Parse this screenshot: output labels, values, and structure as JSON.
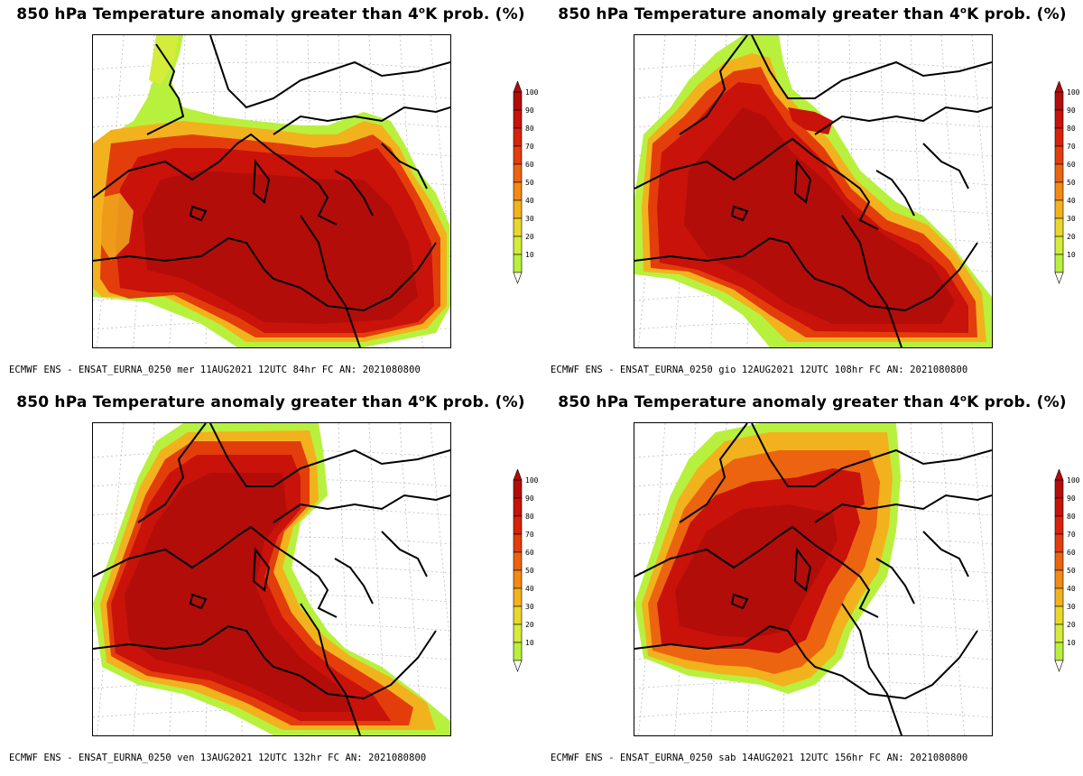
{
  "colorbar": {
    "ticks": [
      "100",
      "90",
      "80",
      "70",
      "60",
      "50",
      "40",
      "30",
      "20",
      "10"
    ],
    "colors": [
      "#b30d0a",
      "#c8120a",
      "#d6230a",
      "#e33d0c",
      "#ec6410",
      "#f28a14",
      "#f2b21e",
      "#e9d72e",
      "#d4ec3a",
      "#b8f03e"
    ]
  },
  "panels": [
    {
      "title": {
        "prefix": "850 hPa Temperature anomaly greater than 4",
        "sup": "o",
        "suffix": "K prob. (%)"
      },
      "caption": "ECMWF ENS - ENSAT_EURNA_0250 mer 11AUG2021 12UTC 84hr FC AN: 2021080800"
    },
    {
      "title": {
        "prefix": "850 hPa Temperature anomaly greater than 4",
        "sup": "o",
        "suffix": "K prob. (%)"
      },
      "caption": "ECMWF ENS - ENSAT_EURNA_0250 gio 12AUG2021 12UTC 108hr FC AN: 2021080800"
    },
    {
      "title": {
        "prefix": "850 hPa Temperature anomaly greater than 4",
        "sup": "o",
        "suffix": "K prob. (%)"
      },
      "caption": "ECMWF ENS - ENSAT_EURNA_0250 ven 13AUG2021 12UTC 132hr FC AN: 2021080800"
    },
    {
      "title": {
        "prefix": "850 hPa Temperature anomaly greater than 4",
        "sup": "o",
        "suffix": "K prob. (%)"
      },
      "caption": "ECMWF ENS - ENSAT_EURNA_0250 sab 14AUG2021 12UTC 156hr FC AN: 2021080800"
    }
  ]
}
